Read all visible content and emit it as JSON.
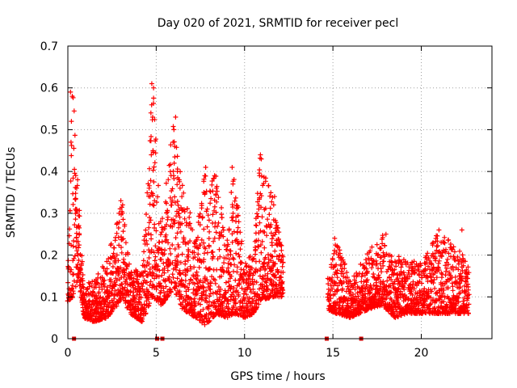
{
  "chart_data": {
    "type": "scatter",
    "title": "Day 020 of 2021, SRMTID for receiver pecl",
    "xlabel": "GPS time / hours",
    "ylabel": "SRMTID / TECUs",
    "xlim": [
      0,
      24
    ],
    "ylim": [
      0,
      0.7
    ],
    "xticks": [
      0,
      5,
      10,
      15,
      20
    ],
    "xtick_labels": [
      "0",
      "5",
      "10",
      "15",
      "20"
    ],
    "yticks": [
      0,
      0.1,
      0.2,
      0.3,
      0.4,
      0.5,
      0.6,
      0.7
    ],
    "ytick_labels": [
      "0",
      "0.1",
      "0.2",
      "0.3",
      "0.4",
      "0.5",
      "0.6",
      "0.7"
    ],
    "grid": true,
    "marker": "plus",
    "color": "#ff0000",
    "zero_marker_color": "#cc0000",
    "zero_markers_x": [
      0.35,
      5.05,
      5.35,
      14.65,
      16.6
    ],
    "series": [
      {
        "name": "SRMTID",
        "gap": [
          12.2,
          14.7
        ],
        "envelope": [
          {
            "x": 0.0,
            "lo": 0.09,
            "hi": 0.15
          },
          {
            "x": 0.3,
            "lo": 0.1,
            "hi": 0.6
          },
          {
            "x": 0.6,
            "lo": 0.15,
            "hi": 0.36
          },
          {
            "x": 0.9,
            "lo": 0.05,
            "hi": 0.13
          },
          {
            "x": 1.5,
            "lo": 0.04,
            "hi": 0.14
          },
          {
            "x": 2.2,
            "lo": 0.05,
            "hi": 0.19
          },
          {
            "x": 2.8,
            "lo": 0.08,
            "hi": 0.3
          },
          {
            "x": 3.1,
            "lo": 0.1,
            "hi": 0.33
          },
          {
            "x": 3.5,
            "lo": 0.06,
            "hi": 0.17
          },
          {
            "x": 4.2,
            "lo": 0.04,
            "hi": 0.16
          },
          {
            "x": 4.8,
            "lo": 0.1,
            "hi": 0.61
          },
          {
            "x": 5.3,
            "lo": 0.08,
            "hi": 0.28
          },
          {
            "x": 6.0,
            "lo": 0.12,
            "hi": 0.53
          },
          {
            "x": 6.5,
            "lo": 0.07,
            "hi": 0.38
          },
          {
            "x": 7.2,
            "lo": 0.05,
            "hi": 0.25
          },
          {
            "x": 7.8,
            "lo": 0.03,
            "hi": 0.41
          },
          {
            "x": 8.4,
            "lo": 0.06,
            "hi": 0.39
          },
          {
            "x": 9.0,
            "lo": 0.05,
            "hi": 0.23
          },
          {
            "x": 9.4,
            "lo": 0.06,
            "hi": 0.41
          },
          {
            "x": 10.0,
            "lo": 0.05,
            "hi": 0.18
          },
          {
            "x": 10.5,
            "lo": 0.06,
            "hi": 0.22
          },
          {
            "x": 10.9,
            "lo": 0.09,
            "hi": 0.44
          },
          {
            "x": 11.6,
            "lo": 0.1,
            "hi": 0.34
          },
          {
            "x": 12.2,
            "lo": 0.1,
            "hi": 0.2
          },
          {
            "x": 14.7,
            "lo": 0.07,
            "hi": 0.14
          },
          {
            "x": 15.2,
            "lo": 0.06,
            "hi": 0.25
          },
          {
            "x": 16.0,
            "lo": 0.05,
            "hi": 0.14
          },
          {
            "x": 17.0,
            "lo": 0.07,
            "hi": 0.21
          },
          {
            "x": 17.8,
            "lo": 0.08,
            "hi": 0.25
          },
          {
            "x": 18.5,
            "lo": 0.05,
            "hi": 0.2
          },
          {
            "x": 19.2,
            "lo": 0.06,
            "hi": 0.19
          },
          {
            "x": 20.0,
            "lo": 0.06,
            "hi": 0.18
          },
          {
            "x": 21.0,
            "lo": 0.06,
            "hi": 0.26
          },
          {
            "x": 22.0,
            "lo": 0.06,
            "hi": 0.22
          },
          {
            "x": 22.7,
            "lo": 0.06,
            "hi": 0.18
          }
        ],
        "spikes": [
          {
            "x": 0.15,
            "y": 0.59
          },
          {
            "x": 0.25,
            "y": 0.58
          },
          {
            "x": 0.2,
            "y": 0.52
          },
          {
            "x": 0.18,
            "y": 0.47
          },
          {
            "x": 0.5,
            "y": 0.36
          },
          {
            "x": 0.45,
            "y": 0.31
          },
          {
            "x": 4.75,
            "y": 0.61
          },
          {
            "x": 4.85,
            "y": 0.6
          },
          {
            "x": 4.7,
            "y": 0.54
          },
          {
            "x": 4.8,
            "y": 0.53
          },
          {
            "x": 4.72,
            "y": 0.44
          },
          {
            "x": 4.82,
            "y": 0.45
          },
          {
            "x": 4.6,
            "y": 0.36
          },
          {
            "x": 4.65,
            "y": 0.34
          },
          {
            "x": 4.9,
            "y": 0.33
          },
          {
            "x": 6.1,
            "y": 0.53
          },
          {
            "x": 6.0,
            "y": 0.5
          },
          {
            "x": 5.95,
            "y": 0.47
          },
          {
            "x": 6.05,
            "y": 0.46
          },
          {
            "x": 6.2,
            "y": 0.4
          },
          {
            "x": 6.3,
            "y": 0.38
          },
          {
            "x": 6.35,
            "y": 0.36
          },
          {
            "x": 6.45,
            "y": 0.34
          },
          {
            "x": 7.8,
            "y": 0.41
          },
          {
            "x": 7.75,
            "y": 0.39
          },
          {
            "x": 7.7,
            "y": 0.35
          },
          {
            "x": 8.3,
            "y": 0.39
          },
          {
            "x": 8.4,
            "y": 0.36
          },
          {
            "x": 9.3,
            "y": 0.41
          },
          {
            "x": 9.25,
            "y": 0.35
          },
          {
            "x": 9.35,
            "y": 0.3
          },
          {
            "x": 10.9,
            "y": 0.44
          },
          {
            "x": 10.95,
            "y": 0.43
          },
          {
            "x": 10.85,
            "y": 0.39
          },
          {
            "x": 10.8,
            "y": 0.31
          },
          {
            "x": 11.7,
            "y": 0.34
          },
          {
            "x": 11.65,
            "y": 0.32
          },
          {
            "x": 3.0,
            "y": 0.33
          },
          {
            "x": 3.1,
            "y": 0.32
          },
          {
            "x": 2.9,
            "y": 0.3
          },
          {
            "x": 18.0,
            "y": 0.25
          },
          {
            "x": 21.0,
            "y": 0.26
          },
          {
            "x": 22.3,
            "y": 0.26
          },
          {
            "x": 15.1,
            "y": 0.24
          }
        ]
      }
    ]
  }
}
